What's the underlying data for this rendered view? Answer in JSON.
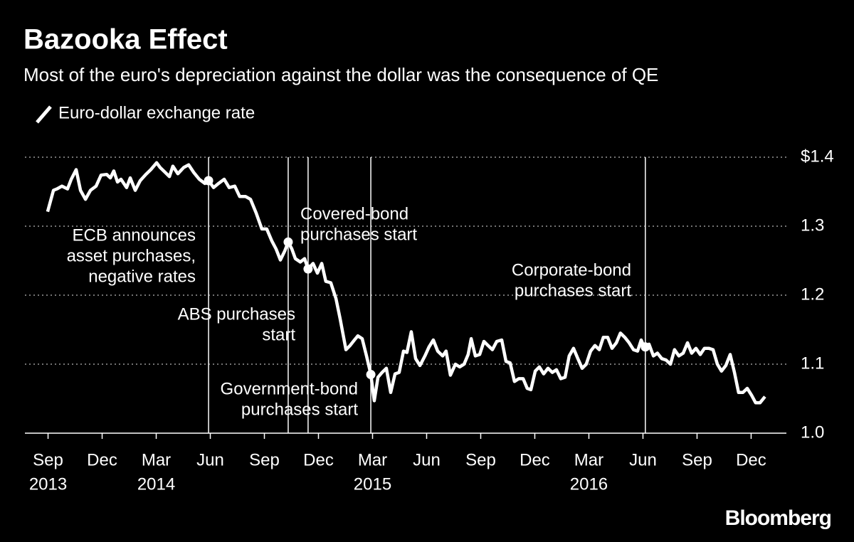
{
  "chart_data": {
    "type": "line",
    "title": "Bazooka Effect",
    "subtitle": "Most of the euro's depreciation against the dollar was the consequence of QE",
    "source": "Bloomberg",
    "x": [
      2013.665,
      2013.692,
      2013.708,
      2013.731,
      2013.757,
      2013.774,
      2013.797,
      2013.817,
      2013.84,
      2013.863,
      2013.889,
      2013.912,
      2013.938,
      2013.955,
      2013.971,
      2013.988,
      2014.004,
      2014.03,
      2014.047,
      2014.07,
      2014.093,
      2014.119,
      2014.142,
      2014.169,
      2014.185,
      2014.208,
      2014.228,
      2014.244,
      2014.267,
      2014.294,
      2014.317,
      2014.34,
      2014.366,
      2014.392,
      2014.409,
      2014.432,
      2014.455,
      2014.481,
      2014.504,
      2014.53,
      2014.553,
      2014.58,
      2014.603,
      2014.629,
      2014.655,
      2014.678,
      2014.701,
      2014.721,
      2014.741,
      2014.761,
      2014.777,
      2014.794,
      2014.81,
      2014.833,
      2014.853,
      2014.869,
      2014.892,
      2014.912,
      2014.932,
      2014.951,
      2014.974,
      2014.998,
      2015.017,
      2015.044,
      2015.063,
      2015.083,
      2015.099,
      2015.119,
      2015.139,
      2015.159,
      2015.175,
      2015.192,
      2015.211,
      2015.231,
      2015.251,
      2015.271,
      2015.29,
      2015.31,
      2015.326,
      2015.346,
      2015.366,
      2015.386,
      2015.409,
      2015.428,
      2015.448,
      2015.468,
      2015.491,
      2015.507,
      2015.527,
      2015.55,
      2015.57,
      2015.59,
      2015.609,
      2015.623,
      2015.642,
      2015.662,
      2015.682,
      2015.701,
      2015.721,
      2015.741,
      2015.764,
      2015.784,
      2015.803,
      2015.823,
      2015.843,
      2015.863,
      2015.882,
      2015.899,
      2015.919,
      2015.938,
      2015.958,
      2015.978,
      2015.998,
      2016.017,
      2016.037,
      2016.057,
      2016.076,
      2016.096,
      2016.116,
      2016.136,
      2016.155,
      2016.175,
      2016.195,
      2016.215,
      2016.234,
      2016.254,
      2016.274,
      2016.294,
      2016.313,
      2016.333,
      2016.353,
      2016.373,
      2016.392,
      2016.409,
      2016.425,
      2016.445,
      2016.465,
      2016.484,
      2016.504,
      2016.524,
      2016.544,
      2016.563,
      2016.583,
      2016.603,
      2016.623,
      2016.642,
      2016.662,
      2016.682,
      2016.701,
      2016.721,
      2016.741,
      2016.761,
      2016.78,
      2016.8,
      2016.82,
      2016.84,
      2016.859,
      2016.879,
      2016.899,
      2016.919,
      2016.938,
      2016.958,
      2016.981
    ],
    "series": [
      {
        "name": "Euro-dollar exchange rate",
        "color": "#ffffff",
        "values": [
          1.321,
          1.352,
          1.354,
          1.358,
          1.354,
          1.368,
          1.382,
          1.352,
          1.339,
          1.352,
          1.358,
          1.374,
          1.375,
          1.37,
          1.38,
          1.364,
          1.368,
          1.356,
          1.37,
          1.352,
          1.366,
          1.375,
          1.382,
          1.392,
          1.385,
          1.378,
          1.372,
          1.387,
          1.376,
          1.385,
          1.389,
          1.378,
          1.368,
          1.362,
          1.366,
          1.356,
          1.362,
          1.368,
          1.356,
          1.358,
          1.343,
          1.343,
          1.339,
          1.319,
          1.296,
          1.296,
          1.279,
          1.267,
          1.251,
          1.264,
          1.277,
          1.267,
          1.253,
          1.248,
          1.253,
          1.238,
          1.246,
          1.232,
          1.246,
          1.22,
          1.218,
          1.195,
          1.166,
          1.121,
          1.127,
          1.135,
          1.141,
          1.137,
          1.112,
          1.085,
          1.047,
          1.081,
          1.088,
          1.094,
          1.059,
          1.086,
          1.088,
          1.119,
          1.117,
          1.147,
          1.108,
          1.098,
          1.112,
          1.125,
          1.135,
          1.119,
          1.112,
          1.119,
          1.084,
          1.1,
          1.096,
          1.1,
          1.114,
          1.137,
          1.112,
          1.114,
          1.133,
          1.127,
          1.121,
          1.133,
          1.135,
          1.104,
          1.102,
          1.075,
          1.079,
          1.079,
          1.065,
          1.063,
          1.09,
          1.096,
          1.086,
          1.094,
          1.088,
          1.092,
          1.079,
          1.081,
          1.112,
          1.123,
          1.108,
          1.094,
          1.1,
          1.119,
          1.127,
          1.121,
          1.139,
          1.139,
          1.123,
          1.131,
          1.145,
          1.139,
          1.131,
          1.121,
          1.119,
          1.135,
          1.123,
          1.129,
          1.112,
          1.116,
          1.108,
          1.106,
          1.1,
          1.121,
          1.112,
          1.116,
          1.131,
          1.116,
          1.123,
          1.114,
          1.123,
          1.123,
          1.121,
          1.1,
          1.09,
          1.098,
          1.114,
          1.088,
          1.059,
          1.059,
          1.065,
          1.055,
          1.044,
          1.044,
          1.053
        ]
      }
    ],
    "xlim": [
      2013.56,
      2017.08
    ],
    "xticks": [
      {
        "value": 2013.667,
        "label": "Sep"
      },
      {
        "value": 2013.917,
        "label": "Dec"
      },
      {
        "value": 2014.167,
        "label": "Mar"
      },
      {
        "value": 2014.417,
        "label": "Jun"
      },
      {
        "value": 2014.667,
        "label": "Sep"
      },
      {
        "value": 2014.917,
        "label": "Dec"
      },
      {
        "value": 2015.167,
        "label": "Mar"
      },
      {
        "value": 2015.417,
        "label": "Jun"
      },
      {
        "value": 2015.667,
        "label": "Sep"
      },
      {
        "value": 2015.917,
        "label": "Dec"
      },
      {
        "value": 2016.167,
        "label": "Mar"
      },
      {
        "value": 2016.417,
        "label": "Jun"
      },
      {
        "value": 2016.667,
        "label": "Sep"
      },
      {
        "value": 2016.917,
        "label": "Dec"
      }
    ],
    "xtick_years": [
      {
        "value": 2013.667,
        "label": "2013"
      },
      {
        "value": 2014.167,
        "label": "2014"
      },
      {
        "value": 2015.167,
        "label": "2015"
      },
      {
        "value": 2016.167,
        "label": "2016"
      }
    ],
    "ylim": [
      1.0,
      1.4
    ],
    "yticks": [
      {
        "value": 1.0,
        "label": "1.0"
      },
      1.1,
      1.2,
      1.3,
      {
        "value": 1.4,
        "label": "$1.4"
      }
    ],
    "grid": true,
    "annotations": [
      {
        "x": 2014.409,
        "value": 1.366,
        "text": [
          "ECB announces",
          "asset purchases,",
          "negative rates"
        ]
      },
      {
        "x": 2014.777,
        "value": 1.277,
        "text": [
          "Covered-bond",
          "purchases start"
        ]
      },
      {
        "x": 2014.869,
        "value": 1.238,
        "text": [
          "ABS purchases",
          "start"
        ]
      },
      {
        "x": 2015.159,
        "value": 1.085,
        "text": [
          "Government-bond",
          "purchases start"
        ]
      },
      {
        "x": 2016.428,
        "value": 1.125,
        "text": [
          "Corporate-bond",
          "purchases start"
        ]
      }
    ]
  }
}
